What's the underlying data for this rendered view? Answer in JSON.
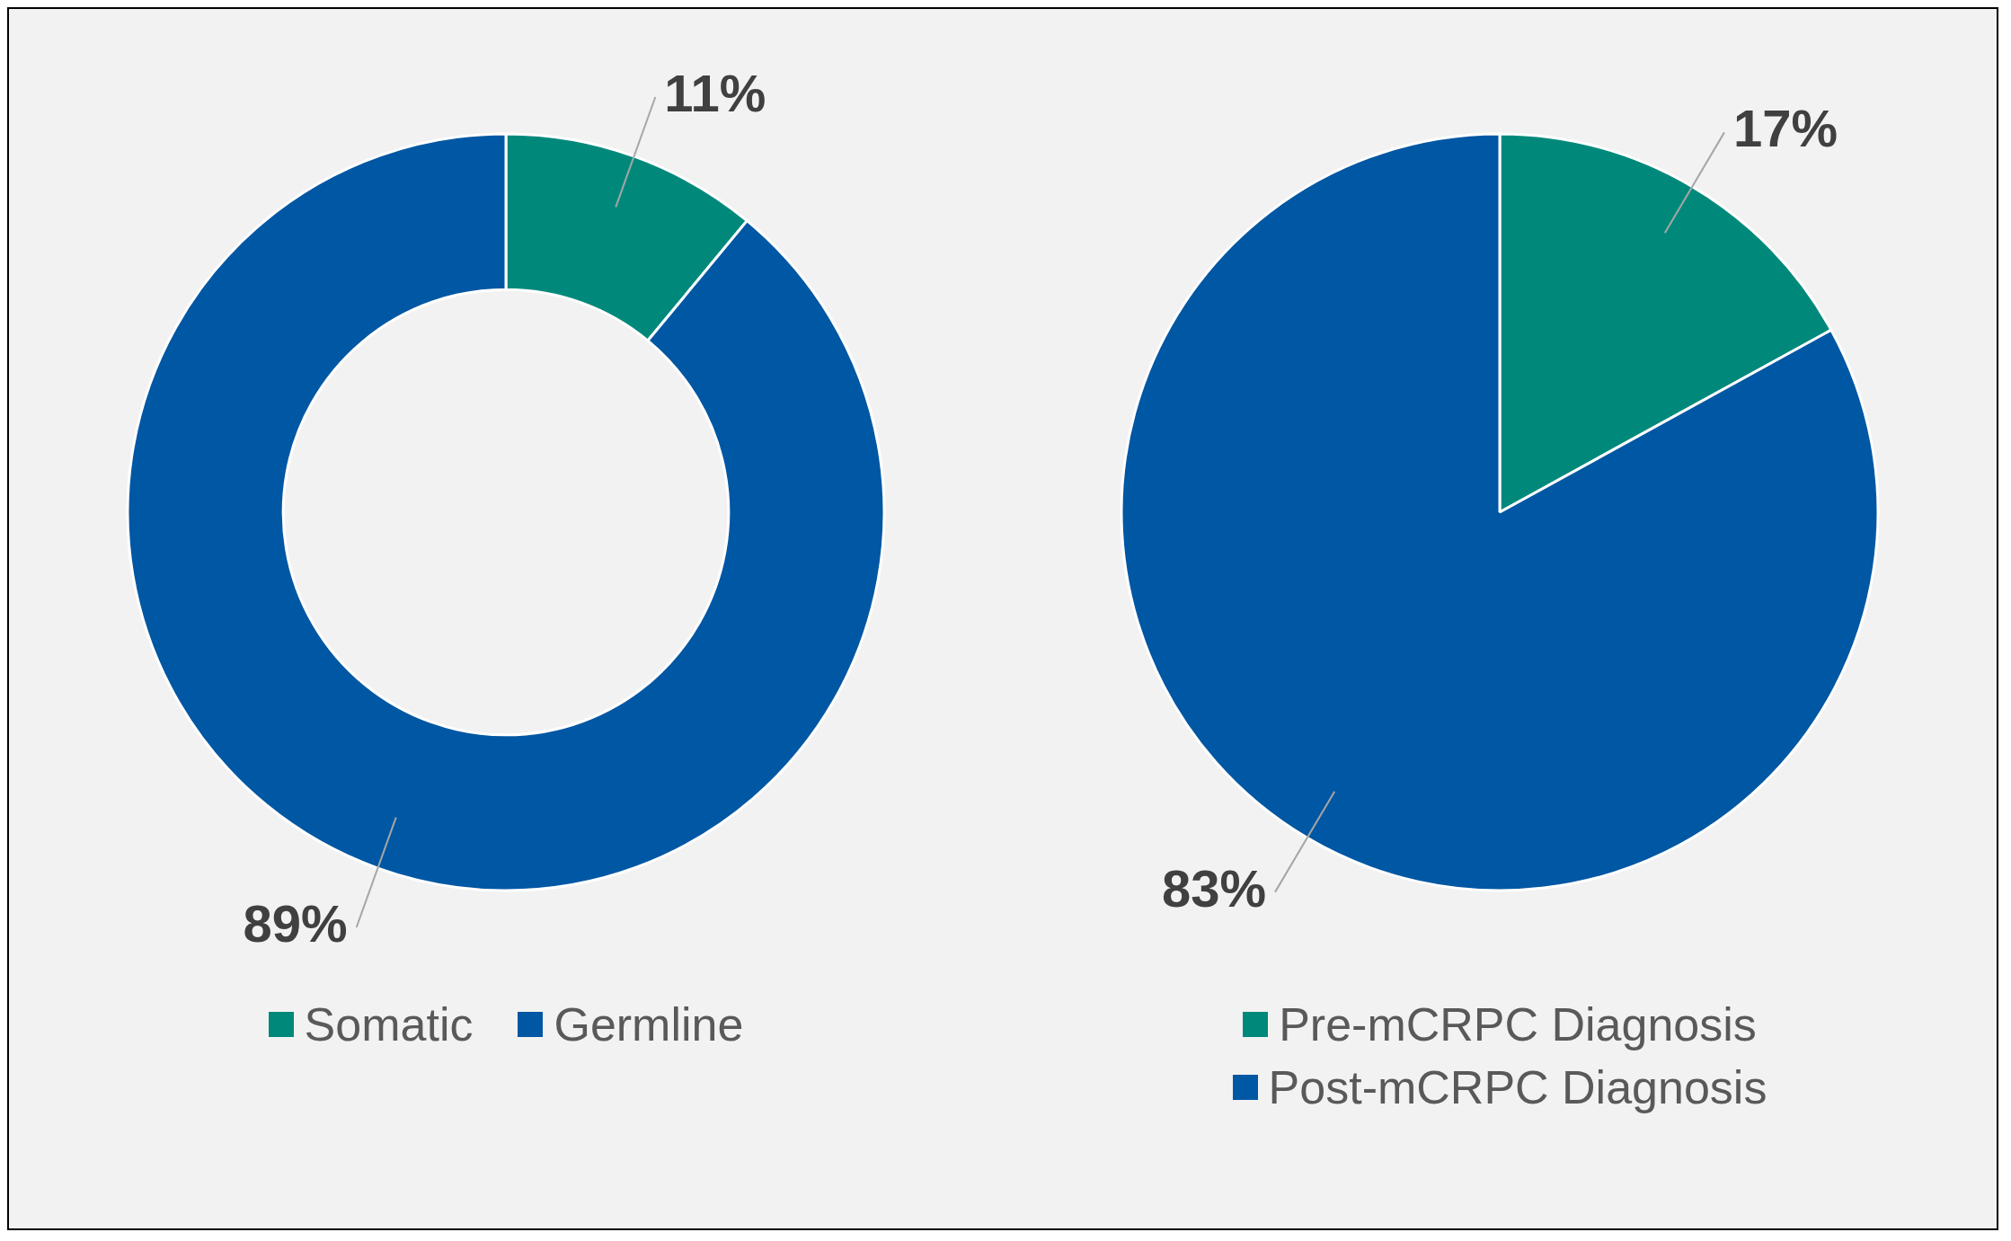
{
  "chart_data": [
    {
      "type": "donut",
      "categories": [
        "Somatic",
        "Germline"
      ],
      "values": [
        11,
        89
      ],
      "colors": [
        "#00897b",
        "#0057a3"
      ],
      "value_labels": [
        "11%",
        "89%"
      ],
      "legend": "bottom"
    },
    {
      "type": "pie",
      "categories": [
        "Pre-mCRPC Diagnosis",
        "Post-mCRPC Diagnosis"
      ],
      "values": [
        17,
        83
      ],
      "colors": [
        "#00897b",
        "#0057a3"
      ],
      "value_labels": [
        "17%",
        "83%"
      ],
      "legend": "bottom"
    }
  ]
}
